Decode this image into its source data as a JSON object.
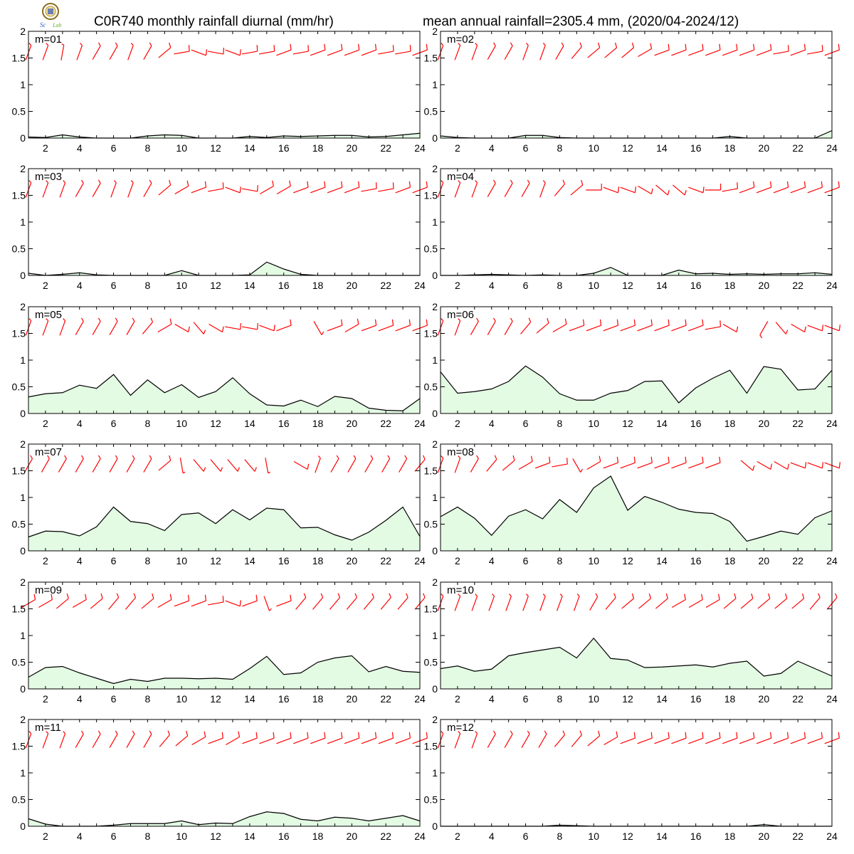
{
  "title_left": "C0R740 monthly rainfall diurnal (mm/hr)",
  "title_right": "mean annual rainfall=2305.4 mm, (2020/04-2024/12)",
  "colors": {
    "fill": "#e3fae3",
    "line": "#000000",
    "wind": "#ff0000"
  },
  "chart_data": [
    {
      "type": "area",
      "label": "m=01",
      "x": [
        1,
        2,
        3,
        4,
        5,
        6,
        7,
        8,
        9,
        10,
        11,
        12,
        13,
        14,
        15,
        16,
        17,
        18,
        19,
        20,
        21,
        22,
        23,
        24
      ],
      "ylim": [
        0,
        2
      ],
      "xlim": [
        1,
        24
      ],
      "y_ticks": [
        "0",
        "0.5",
        "1",
        "1.5",
        "2"
      ],
      "x_ticks": [
        "2",
        "4",
        "6",
        "8",
        "10",
        "12",
        "14",
        "16",
        "18",
        "20",
        "22",
        "24"
      ],
      "values": [
        0.02,
        0.01,
        0.06,
        0.02,
        0.0,
        0.0,
        0.0,
        0.04,
        0.06,
        0.05,
        0.0,
        0.0,
        0.0,
        0.03,
        0.01,
        0.04,
        0.03,
        0.04,
        0.05,
        0.05,
        0.02,
        0.03,
        0.06,
        0.09
      ],
      "wind_dir": [
        200,
        200,
        190,
        200,
        210,
        210,
        200,
        210,
        230,
        260,
        290,
        280,
        290,
        260,
        260,
        250,
        260,
        250,
        250,
        250,
        250,
        260,
        260,
        250
      ]
    },
    {
      "type": "area",
      "label": "m=02",
      "x": [
        1,
        2,
        3,
        4,
        5,
        6,
        7,
        8,
        9,
        10,
        11,
        12,
        13,
        14,
        15,
        16,
        17,
        18,
        19,
        20,
        21,
        22,
        23,
        24
      ],
      "ylim": [
        0,
        2
      ],
      "xlim": [
        1,
        24
      ],
      "y_ticks": [
        "0",
        "0.5",
        "1",
        "1.5",
        "2"
      ],
      "x_ticks": [
        "2",
        "4",
        "6",
        "8",
        "10",
        "12",
        "14",
        "16",
        "18",
        "20",
        "22",
        "24"
      ],
      "values": [
        0.04,
        0.01,
        0.0,
        0.0,
        0.0,
        0.05,
        0.05,
        0.01,
        0.0,
        0.0,
        0.0,
        0.0,
        0.0,
        0.0,
        0.0,
        0.0,
        0.0,
        0.03,
        0.0,
        0.0,
        0.0,
        0.0,
        0.0,
        0.14
      ],
      "wind_dir": [
        200,
        200,
        200,
        210,
        210,
        200,
        200,
        210,
        220,
        230,
        230,
        230,
        240,
        250,
        250,
        250,
        250,
        250,
        250,
        250,
        260,
        250,
        260,
        250
      ]
    },
    {
      "type": "area",
      "label": "m=03",
      "x": [
        1,
        2,
        3,
        4,
        5,
        6,
        7,
        8,
        9,
        10,
        11,
        12,
        13,
        14,
        15,
        16,
        17,
        18,
        19,
        20,
        21,
        22,
        23,
        24
      ],
      "ylim": [
        0,
        2
      ],
      "xlim": [
        1,
        24
      ],
      "y_ticks": [
        "0",
        "0.5",
        "1",
        "1.5",
        "2"
      ],
      "x_ticks": [
        "2",
        "4",
        "6",
        "8",
        "10",
        "12",
        "14",
        "16",
        "18",
        "20",
        "22",
        "24"
      ],
      "values": [
        0.04,
        0.0,
        0.02,
        0.05,
        0.01,
        0.0,
        0.0,
        0.0,
        0.0,
        0.09,
        0.0,
        0.0,
        0.0,
        0.01,
        0.25,
        0.12,
        0.02,
        0.0,
        0.0,
        0.0,
        0.0,
        0.0,
        0.0,
        0.0
      ],
      "wind_dir": [
        200,
        200,
        200,
        210,
        210,
        200,
        200,
        210,
        230,
        240,
        250,
        260,
        290,
        280,
        240,
        240,
        250,
        250,
        250,
        250,
        260,
        260,
        250,
        250
      ]
    },
    {
      "type": "area",
      "label": "m=04",
      "x": [
        1,
        2,
        3,
        4,
        5,
        6,
        7,
        8,
        9,
        10,
        11,
        12,
        13,
        14,
        15,
        16,
        17,
        18,
        19,
        20,
        21,
        22,
        23,
        24
      ],
      "ylim": [
        0,
        2
      ],
      "xlim": [
        1,
        24
      ],
      "y_ticks": [
        "0",
        "0.5",
        "1",
        "1.5",
        "2"
      ],
      "x_ticks": [
        "2",
        "4",
        "6",
        "8",
        "10",
        "12",
        "14",
        "16",
        "18",
        "20",
        "22",
        "24"
      ],
      "values": [
        0.0,
        0.0,
        0.01,
        0.02,
        0.01,
        0.0,
        0.01,
        0.0,
        0.0,
        0.04,
        0.15,
        0.0,
        0.0,
        0.0,
        0.1,
        0.03,
        0.04,
        0.02,
        0.03,
        0.02,
        0.03,
        0.03,
        0.05,
        0.02
      ],
      "wind_dir": [
        200,
        200,
        200,
        210,
        210,
        210,
        200,
        220,
        230,
        270,
        290,
        290,
        300,
        310,
        310,
        290,
        270,
        260,
        250,
        250,
        250,
        250,
        250,
        250
      ]
    },
    {
      "type": "area",
      "label": "m=05",
      "x": [
        1,
        2,
        3,
        4,
        5,
        6,
        7,
        8,
        9,
        10,
        11,
        12,
        13,
        14,
        15,
        16,
        17,
        18,
        19,
        20,
        21,
        22,
        23,
        24
      ],
      "ylim": [
        0,
        2
      ],
      "xlim": [
        1,
        24
      ],
      "y_ticks": [
        "0",
        "0.5",
        "1",
        "1.5",
        "2"
      ],
      "x_ticks": [
        "2",
        "4",
        "6",
        "8",
        "10",
        "12",
        "14",
        "16",
        "18",
        "20",
        "22",
        "24"
      ],
      "values": [
        0.31,
        0.37,
        0.39,
        0.53,
        0.47,
        0.73,
        0.34,
        0.63,
        0.39,
        0.54,
        0.3,
        0.41,
        0.67,
        0.37,
        0.16,
        0.14,
        0.25,
        0.13,
        0.32,
        0.28,
        0.1,
        0.06,
        0.05,
        0.28
      ],
      "wind_dir": [
        200,
        200,
        200,
        210,
        210,
        210,
        210,
        220,
        240,
        300,
        320,
        300,
        280,
        280,
        290,
        250,
        null,
        330,
        250,
        240,
        250,
        250,
        250,
        250
      ]
    },
    {
      "type": "area",
      "label": "m=06",
      "x": [
        1,
        2,
        3,
        4,
        5,
        6,
        7,
        8,
        9,
        10,
        11,
        12,
        13,
        14,
        15,
        16,
        17,
        18,
        19,
        20,
        21,
        22,
        23,
        24
      ],
      "ylim": [
        0,
        2
      ],
      "xlim": [
        1,
        24
      ],
      "y_ticks": [
        "0",
        "0.5",
        "1",
        "1.5",
        "2"
      ],
      "x_ticks": [
        "2",
        "4",
        "6",
        "8",
        "10",
        "12",
        "14",
        "16",
        "18",
        "20",
        "22",
        "24"
      ],
      "values": [
        0.78,
        0.38,
        0.41,
        0.46,
        0.6,
        0.89,
        0.68,
        0.37,
        0.25,
        0.25,
        0.38,
        0.43,
        0.6,
        0.61,
        0.2,
        0.48,
        0.66,
        0.81,
        0.38,
        0.88,
        0.83,
        0.44,
        0.46,
        0.81
      ],
      "wind_dir": [
        200,
        200,
        210,
        210,
        210,
        220,
        230,
        240,
        250,
        250,
        250,
        250,
        250,
        250,
        250,
        250,
        260,
        300,
        null,
        30,
        320,
        300,
        290,
        290
      ]
    },
    {
      "type": "area",
      "label": "m=07",
      "x": [
        1,
        2,
        3,
        4,
        5,
        6,
        7,
        8,
        9,
        10,
        11,
        12,
        13,
        14,
        15,
        16,
        17,
        18,
        19,
        20,
        21,
        22,
        23,
        24
      ],
      "ylim": [
        0,
        2
      ],
      "xlim": [
        1,
        24
      ],
      "y_ticks": [
        "0",
        "0.5",
        "1",
        "1.5",
        "2"
      ],
      "x_ticks": [
        "2",
        "4",
        "6",
        "8",
        "10",
        "12",
        "14",
        "16",
        "18",
        "20",
        "22",
        "24"
      ],
      "values": [
        0.26,
        0.37,
        0.36,
        0.28,
        0.45,
        0.82,
        0.55,
        0.51,
        0.38,
        0.68,
        0.71,
        0.51,
        0.77,
        0.58,
        0.8,
        0.77,
        0.43,
        0.44,
        0.3,
        0.2,
        0.35,
        0.57,
        0.82,
        0.27
      ],
      "wind_dir": [
        210,
        210,
        210,
        210,
        210,
        210,
        210,
        210,
        230,
        350,
        320,
        320,
        320,
        320,
        350,
        null,
        300,
        200,
        210,
        210,
        210,
        210,
        210,
        220
      ]
    },
    {
      "type": "area",
      "label": "m=08",
      "x": [
        1,
        2,
        3,
        4,
        5,
        6,
        7,
        8,
        9,
        10,
        11,
        12,
        13,
        14,
        15,
        16,
        17,
        18,
        19,
        20,
        21,
        22,
        23,
        24
      ],
      "ylim": [
        0,
        2
      ],
      "xlim": [
        1,
        24
      ],
      "y_ticks": [
        "0",
        "0.5",
        "1",
        "1.5",
        "2"
      ],
      "x_ticks": [
        "2",
        "4",
        "6",
        "8",
        "10",
        "12",
        "14",
        "16",
        "18",
        "20",
        "22",
        "24"
      ],
      "values": [
        0.64,
        0.82,
        0.61,
        0.29,
        0.65,
        0.77,
        0.6,
        0.96,
        0.72,
        1.18,
        1.4,
        0.76,
        1.02,
        0.91,
        0.78,
        0.72,
        0.7,
        0.55,
        0.18,
        0.27,
        0.37,
        0.31,
        0.62,
        0.75
      ],
      "wind_dir": [
        200,
        200,
        210,
        220,
        230,
        240,
        250,
        260,
        330,
        240,
        250,
        250,
        250,
        250,
        250,
        250,
        250,
        null,
        310,
        300,
        300,
        290,
        290,
        290
      ]
    },
    {
      "type": "area",
      "label": "m=09",
      "x": [
        1,
        2,
        3,
        4,
        5,
        6,
        7,
        8,
        9,
        10,
        11,
        12,
        13,
        14,
        15,
        16,
        17,
        18,
        19,
        20,
        21,
        22,
        23,
        24
      ],
      "ylim": [
        0,
        2
      ],
      "xlim": [
        1,
        24
      ],
      "y_ticks": [
        "0",
        "0.5",
        "1",
        "1.5",
        "2"
      ],
      "x_ticks": [
        "2",
        "4",
        "6",
        "8",
        "10",
        "12",
        "14",
        "16",
        "18",
        "20",
        "22",
        "24"
      ],
      "values": [
        0.22,
        0.4,
        0.42,
        0.3,
        0.2,
        0.1,
        0.18,
        0.14,
        0.2,
        0.2,
        0.19,
        0.2,
        0.18,
        0.38,
        0.61,
        0.27,
        0.3,
        0.5,
        0.58,
        0.62,
        0.32,
        0.42,
        0.33,
        0.31
      ],
      "wind_dir": [
        240,
        240,
        230,
        240,
        230,
        220,
        220,
        230,
        240,
        250,
        250,
        260,
        290,
        250,
        340,
        250,
        220,
        220,
        220,
        220,
        220,
        220,
        220,
        220
      ]
    },
    {
      "type": "area",
      "label": "m=10",
      "x": [
        1,
        2,
        3,
        4,
        5,
        6,
        7,
        8,
        9,
        10,
        11,
        12,
        13,
        14,
        15,
        16,
        17,
        18,
        19,
        20,
        21,
        22,
        23,
        24
      ],
      "ylim": [
        0,
        2
      ],
      "xlim": [
        1,
        24
      ],
      "y_ticks": [
        "0",
        "0.5",
        "1",
        "1.5",
        "2"
      ],
      "x_ticks": [
        "2",
        "4",
        "6",
        "8",
        "10",
        "12",
        "14",
        "16",
        "18",
        "20",
        "22",
        "24"
      ],
      "values": [
        0.38,
        0.43,
        0.33,
        0.37,
        0.62,
        0.68,
        0.73,
        0.78,
        0.58,
        0.95,
        0.57,
        0.54,
        0.4,
        0.41,
        0.43,
        0.45,
        0.41,
        0.48,
        0.52,
        0.24,
        0.29,
        0.52,
        0.38,
        0.24
      ],
      "wind_dir": [
        200,
        200,
        200,
        200,
        200,
        200,
        200,
        200,
        200,
        210,
        220,
        230,
        230,
        230,
        240,
        240,
        240,
        230,
        230,
        230,
        230,
        230,
        220,
        220
      ]
    },
    {
      "type": "area",
      "label": "m=11",
      "x": [
        1,
        2,
        3,
        4,
        5,
        6,
        7,
        8,
        9,
        10,
        11,
        12,
        13,
        14,
        15,
        16,
        17,
        18,
        19,
        20,
        21,
        22,
        23,
        24
      ],
      "ylim": [
        0,
        2
      ],
      "xlim": [
        1,
        24
      ],
      "y_ticks": [
        "0",
        "0.5",
        "1",
        "1.5",
        "2"
      ],
      "x_ticks": [
        "2",
        "4",
        "6",
        "8",
        "10",
        "12",
        "14",
        "16",
        "18",
        "20",
        "22",
        "24"
      ],
      "values": [
        0.14,
        0.04,
        0.0,
        0.0,
        0.0,
        0.02,
        0.05,
        0.05,
        0.05,
        0.1,
        0.03,
        0.06,
        0.05,
        0.18,
        0.27,
        0.24,
        0.13,
        0.1,
        0.17,
        0.15,
        0.1,
        0.15,
        0.2,
        0.1
      ],
      "wind_dir": [
        200,
        200,
        200,
        210,
        210,
        210,
        210,
        210,
        220,
        230,
        240,
        250,
        240,
        250,
        250,
        250,
        250,
        250,
        250,
        250,
        250,
        250,
        250,
        250
      ]
    },
    {
      "type": "area",
      "label": "m=12",
      "x": [
        1,
        2,
        3,
        4,
        5,
        6,
        7,
        8,
        9,
        10,
        11,
        12,
        13,
        14,
        15,
        16,
        17,
        18,
        19,
        20,
        21,
        22,
        23,
        24
      ],
      "ylim": [
        0,
        2
      ],
      "xlim": [
        1,
        24
      ],
      "y_ticks": [
        "0",
        "0.5",
        "1",
        "1.5",
        "2"
      ],
      "x_ticks": [
        "2",
        "4",
        "6",
        "8",
        "10",
        "12",
        "14",
        "16",
        "18",
        "20",
        "22",
        "24"
      ],
      "values": [
        0.0,
        0.0,
        0.0,
        0.0,
        0.0,
        0.0,
        0.0,
        0.02,
        0.01,
        0.0,
        0.0,
        0.0,
        0.0,
        0.0,
        0.0,
        0.0,
        0.0,
        0.0,
        0.0,
        0.03,
        0.0,
        0.0,
        0.0,
        0.0
      ],
      "wind_dir": [
        200,
        200,
        200,
        210,
        210,
        210,
        210,
        220,
        220,
        230,
        240,
        250,
        250,
        250,
        250,
        250,
        250,
        250,
        250,
        250,
        250,
        250,
        250,
        250
      ]
    }
  ]
}
